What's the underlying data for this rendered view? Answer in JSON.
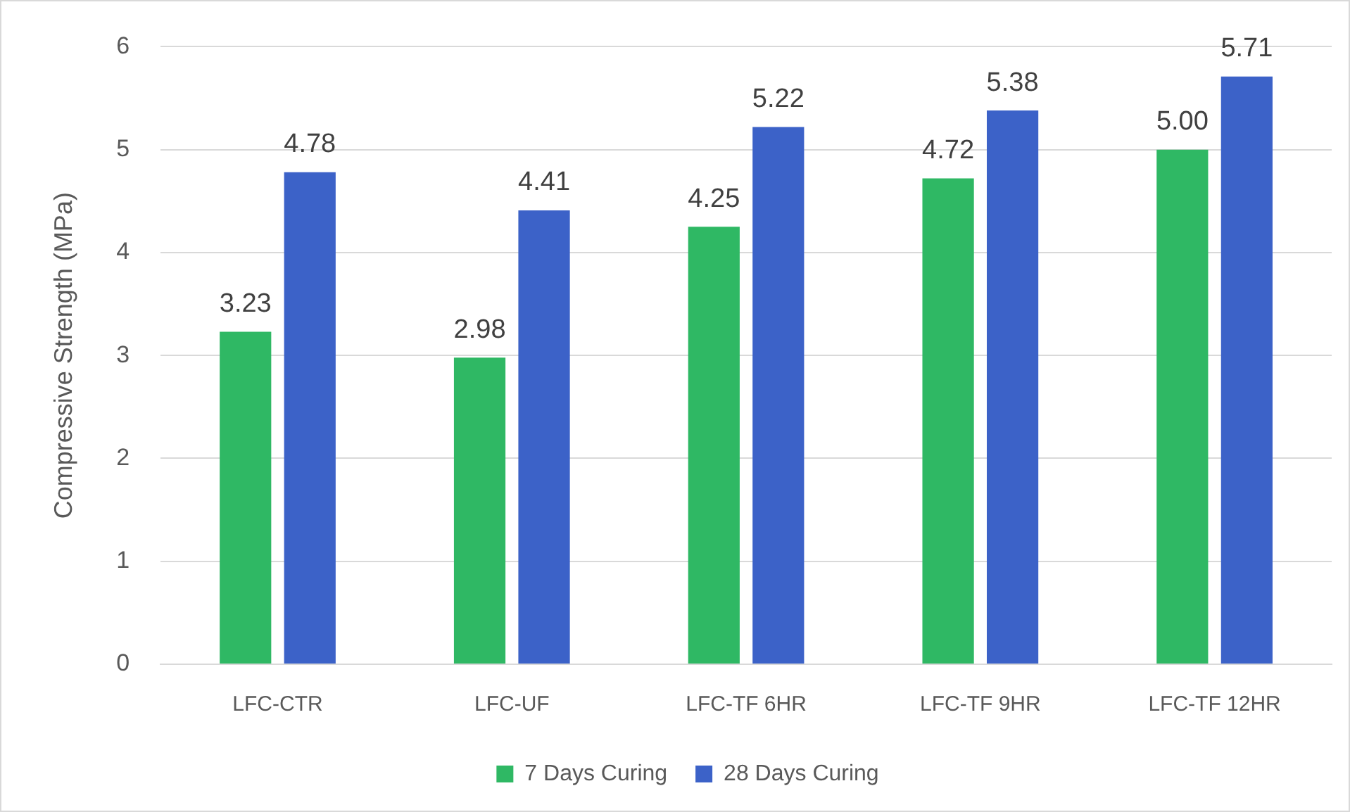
{
  "chart_data": {
    "type": "bar",
    "ylabel": "Compressive Strength (MPa)",
    "categories": [
      "LFC-CTR",
      "LFC-UF",
      "LFC-TF 6HR",
      "LFC-TF 9HR",
      "LFC-TF 12HR"
    ],
    "series": [
      {
        "name": "7 Days Curing",
        "color": "#2fb864",
        "values": [
          3.23,
          2.98,
          4.25,
          4.72,
          5.0
        ],
        "value_labels": [
          "3.23",
          "2.98",
          "4.25",
          "4.72",
          "5.00"
        ]
      },
      {
        "name": "28 Days Curing",
        "color": "#3c62c8",
        "values": [
          4.78,
          4.41,
          5.22,
          5.38,
          5.71
        ],
        "value_labels": [
          "4.78",
          "4.41",
          "5.22",
          "5.38",
          "5.71"
        ]
      }
    ],
    "ylim": [
      0,
      6
    ],
    "yticks": [
      0,
      1,
      2,
      3,
      4,
      5,
      6
    ],
    "grid": "y",
    "legend": "bottom"
  }
}
